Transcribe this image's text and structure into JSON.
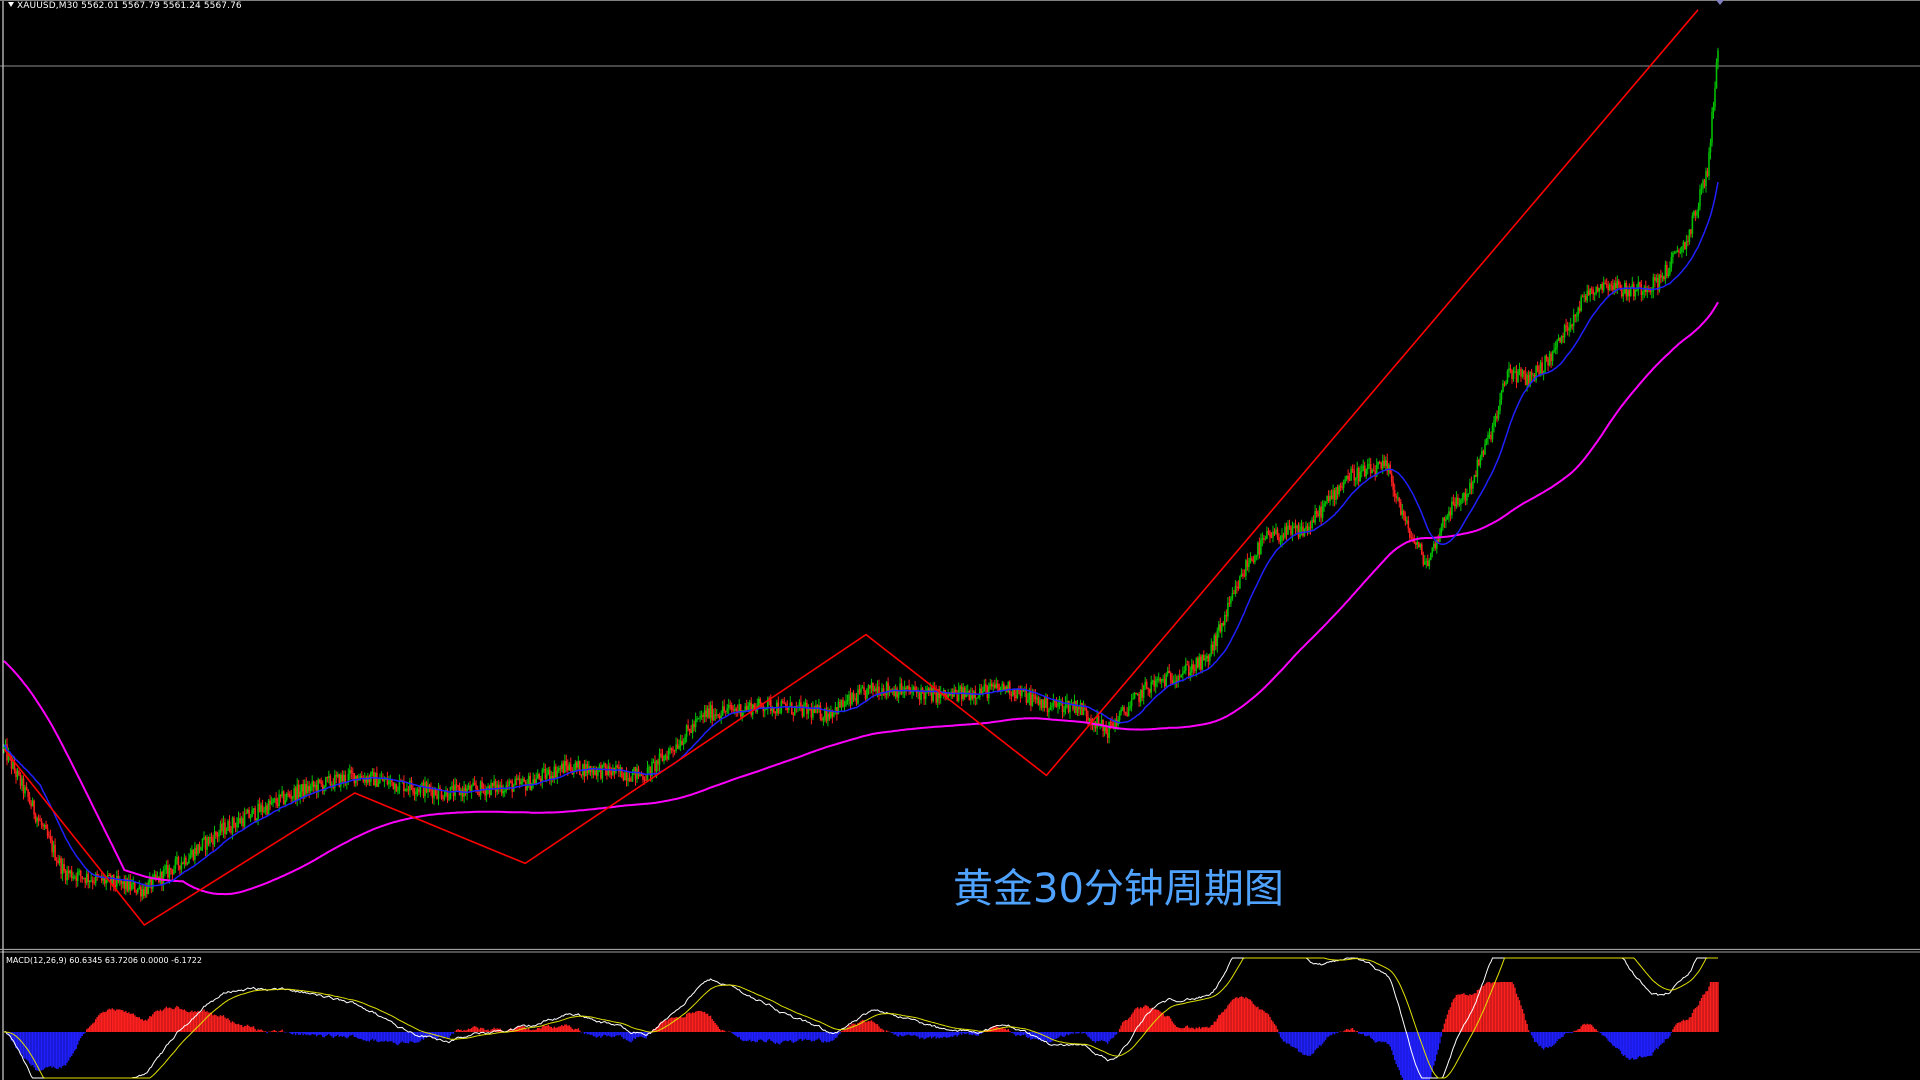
{
  "window": {
    "symbol_info": "XAUUSD,M30  5562.01 5567.79 5561.24 5567.76",
    "indicator_info": "MACD(12,26,9) 60.6345 63.7206 0.0000 -6.1722",
    "annotation": "黄金30分钟周期图"
  },
  "colors": {
    "background": "#000000",
    "frame": "#ffffff",
    "bull_candle": "#00c000",
    "bear_candle": "#ff2020",
    "fast_ma": "#2020ff",
    "slow_ma": "#ff00ff",
    "trend_lines": "#ff0000",
    "price_level": "#c0c0c0",
    "macd_positive": "#ff2020",
    "macd_negative": "#2020ff",
    "macd_line": "#ffffff",
    "signal_line": "#e0e000",
    "annotation": "#4fa3ff"
  },
  "chart_data": [
    {
      "type": "candlestick",
      "title": "XAUUSD,M30",
      "ohlc_last": {
        "open": 5562.01,
        "high": 5567.79,
        "low": 5561.24,
        "close": 5567.76
      },
      "overlays": [
        "fast moving average (blue)",
        "slow moving average (magenta)",
        "zigzag trend lines (red)",
        "horizontal price level (gray)"
      ],
      "approx_path": {
        "x_index": [
          0,
          60,
          140,
          220,
          290,
          350,
          440,
          520,
          560,
          640,
          700,
          760,
          820,
          870,
          940,
          1000,
          1040,
          1070,
          1100,
          1140,
          1200,
          1240,
          1260,
          1300,
          1340,
          1380,
          1400,
          1420,
          1440,
          1460,
          1490,
          1500,
          1520,
          1540,
          1580,
          1600,
          1620,
          1650,
          1680,
          1700,
          1710
        ],
        "price_rel": [
          0.2,
          0.06,
          0.04,
          0.11,
          0.15,
          0.17,
          0.15,
          0.16,
          0.18,
          0.17,
          0.24,
          0.25,
          0.24,
          0.27,
          0.26,
          0.27,
          0.25,
          0.25,
          0.22,
          0.27,
          0.3,
          0.41,
          0.44,
          0.45,
          0.51,
          0.52,
          0.45,
          0.41,
          0.47,
          0.49,
          0.58,
          0.63,
          0.62,
          0.64,
          0.72,
          0.73,
          0.72,
          0.73,
          0.78,
          0.86,
          1.0
        ]
      },
      "annotation": "黄金30分钟周期图"
    },
    {
      "type": "bar",
      "title": "MACD(12,26,9)",
      "values_readout": [
        60.6345,
        63.7206,
        0.0,
        -6.1722
      ],
      "series": [
        {
          "name": "MACD histogram"
        },
        {
          "name": "MACD line"
        },
        {
          "name": "Signal line"
        }
      ]
    }
  ]
}
